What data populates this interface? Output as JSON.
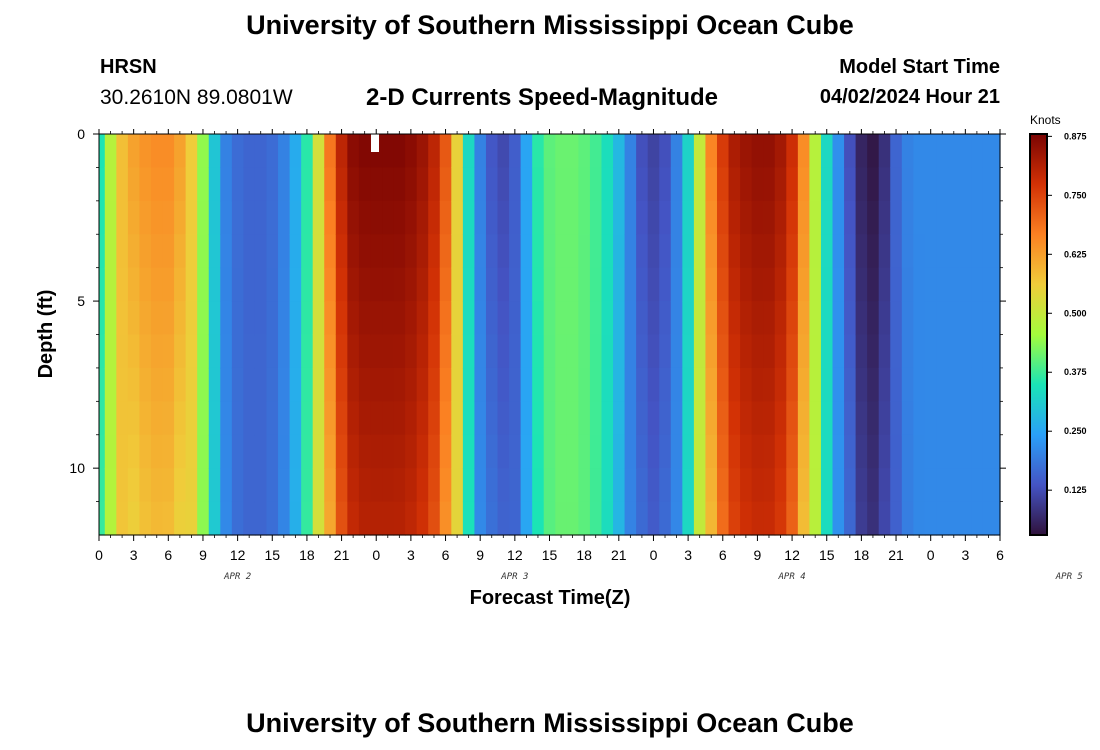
{
  "header": {
    "title": "University of Southern Mississippi Ocean Cube",
    "station": "HRSN",
    "coords": "30.2610N  89.0801W",
    "subtitle": "2-D Currents Speed-Magnitude",
    "model_start_label": "Model Start Time",
    "model_start_value": "04/02/2024 Hour 21"
  },
  "footer": {
    "title": "University of Southern Mississippi Ocean Cube"
  },
  "colors": {
    "stops": [
      "#30123b",
      "#4454c4",
      "#2aa0f8",
      "#1ae4b6",
      "#a4fc3c",
      "#f0cc3a",
      "#fb8022",
      "#d23105",
      "#7a0403"
    ]
  },
  "chart_data": {
    "type": "heatmap",
    "title": "2-D Currents Speed-Magnitude",
    "xlabel": "Forecast Time(Z)",
    "ylabel": "Depth (ft)",
    "x_tick_labels": [
      "0",
      "3",
      "6",
      "9",
      "12",
      "15",
      "18",
      "21",
      "0",
      "3",
      "6",
      "9",
      "12",
      "15",
      "18",
      "21",
      "0",
      "3",
      "6",
      "9",
      "12",
      "15",
      "18",
      "21",
      "0",
      "3",
      "6"
    ],
    "day_labels": [
      {
        "label": "APR 2",
        "hour": 12
      },
      {
        "label": "APR 3",
        "hour": 36
      },
      {
        "label": "APR 4",
        "hour": 60
      },
      {
        "label": "APR 5",
        "hour": 84
      }
    ],
    "x_range_hours": [
      0,
      78
    ],
    "y_tick_labels": [
      "0",
      "5",
      "10"
    ],
    "y_ticks": [
      0,
      5,
      10
    ],
    "ylim": [
      0,
      12
    ],
    "colorbar": {
      "unit": "Knots",
      "range": [
        0.03,
        0.88
      ],
      "ticks": [
        "0.125",
        "0.250",
        "0.375",
        "0.500",
        "0.625",
        "0.750",
        "0.875"
      ]
    },
    "surface_speed_by_hour": {
      "hours": [
        0,
        1,
        2,
        3,
        4,
        5,
        6,
        7,
        8,
        9,
        10,
        11,
        12,
        13,
        14,
        15,
        16,
        17,
        18,
        19,
        20,
        21,
        22,
        23,
        24,
        25,
        26,
        27,
        28,
        29,
        30,
        31,
        32,
        33,
        34,
        35,
        36,
        37,
        38,
        39,
        40,
        41,
        42,
        43,
        44,
        45,
        46,
        47,
        48,
        49,
        50,
        51,
        52,
        53,
        54,
        55,
        56,
        57,
        58,
        59,
        60,
        61,
        62,
        63,
        64,
        65,
        66,
        67,
        68,
        69,
        70,
        71,
        72,
        73,
        74,
        75,
        76,
        77,
        78
      ],
      "knots": [
        0.35,
        0.48,
        0.58,
        0.62,
        0.64,
        0.65,
        0.65,
        0.62,
        0.56,
        0.44,
        0.3,
        0.2,
        0.17,
        0.16,
        0.16,
        0.17,
        0.2,
        0.26,
        0.36,
        0.52,
        0.68,
        0.8,
        0.86,
        0.87,
        0.87,
        0.87,
        0.87,
        0.86,
        0.84,
        0.8,
        0.72,
        0.55,
        0.33,
        0.2,
        0.14,
        0.12,
        0.15,
        0.25,
        0.36,
        0.4,
        0.41,
        0.41,
        0.4,
        0.38,
        0.34,
        0.28,
        0.2,
        0.13,
        0.11,
        0.13,
        0.2,
        0.32,
        0.5,
        0.66,
        0.76,
        0.82,
        0.84,
        0.85,
        0.85,
        0.83,
        0.78,
        0.65,
        0.48,
        0.33,
        0.22,
        0.13,
        0.06,
        0.04,
        0.08,
        0.16,
        0.2,
        0.21,
        0.21,
        0.21,
        0.21,
        0.21,
        0.21,
        0.21,
        0.21
      ]
    },
    "notes": "Speed is roughly uniform with depth at each time; the strong ebb/flood peaks broaden slightly toward the bottom (12 ft)."
  }
}
